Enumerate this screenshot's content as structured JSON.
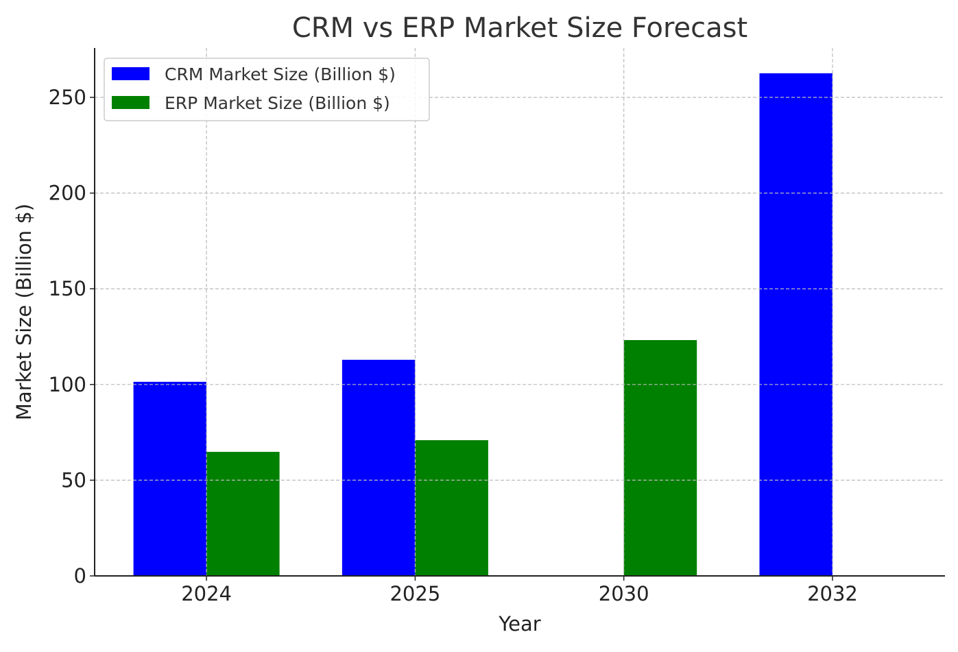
{
  "chart_data": {
    "type": "bar",
    "title": "CRM vs ERP Market Size Forecast",
    "xlabel": "Year",
    "ylabel": "Market Size (Billion $)",
    "categories": [
      "2024",
      "2025",
      "2030",
      "2032"
    ],
    "series": [
      {
        "name": "CRM Market Size (Billion $)",
        "color": "#0000ff",
        "values": [
          101.4,
          112.9,
          null,
          262.6
        ]
      },
      {
        "name": "ERP Market Size (Billion $)",
        "color": "#008000",
        "values": [
          64.8,
          70.9,
          123.2,
          null
        ]
      }
    ],
    "ylim": [
      0,
      275.8
    ],
    "yticks": [
      0,
      50,
      100,
      150,
      200,
      250
    ],
    "grid": true,
    "legend_position": "top-left"
  }
}
